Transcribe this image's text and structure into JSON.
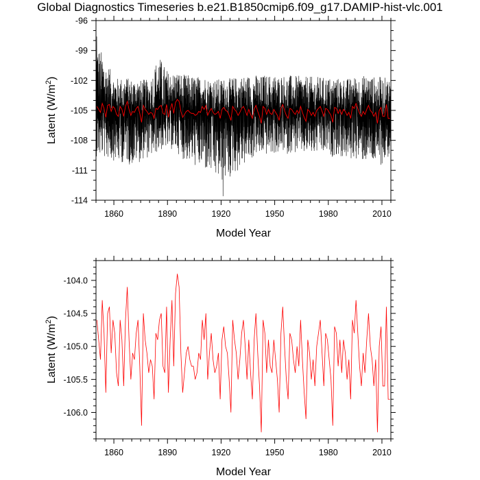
{
  "title": "Global Diagnostics Timeseries b.e21.B1850cmip6.f09_g17.DAMIP-hist-vlc.001",
  "colors": {
    "monthly": "#000000",
    "annual": "#ff0000"
  },
  "chart_data": [
    {
      "type": "line",
      "xlabel": "Model Year",
      "ylabel_prefix": "Latent (W/m",
      "ylabel_sup": "2",
      "ylabel_suffix": ")",
      "xlim": [
        1850,
        2015
      ],
      "ylim": [
        -114,
        -96
      ],
      "xticks": [
        1860,
        1890,
        1920,
        1950,
        1980,
        2010
      ],
      "yticks": [
        -96,
        -99,
        -102,
        -105,
        -108,
        -111,
        -114
      ],
      "series": [
        {
          "kind": "monthly",
          "color": "#000000",
          "x_start": 1850,
          "x_step": 0.083333,
          "mean": -105.0,
          "envelope_upper": [
            [
              1850,
              -97.6
            ],
            [
              1860,
              -101.5
            ],
            [
              1870,
              -101.6
            ],
            [
              1880,
              -101.8
            ],
            [
              1885,
              -99.2
            ],
            [
              1890,
              -100.8
            ],
            [
              1900,
              -101.2
            ],
            [
              1920,
              -101.7
            ],
            [
              1935,
              -101.3
            ],
            [
              1950,
              -101.2
            ],
            [
              1970,
              -101.4
            ],
            [
              1990,
              -101.6
            ],
            [
              2000,
              -101.3
            ],
            [
              2013,
              -101.5
            ]
          ],
          "envelope_lower": [
            [
              1850,
              -110.5
            ],
            [
              1870,
              -111.5
            ],
            [
              1890,
              -109.5
            ],
            [
              1921,
              -113.6
            ],
            [
              1940,
              -110.3
            ],
            [
              1960,
              -110.0
            ],
            [
              1980,
              -110.2
            ],
            [
              2010,
              -111.5
            ],
            [
              2013,
              -110.5
            ]
          ]
        },
        {
          "kind": "annual",
          "color": "#ff0000",
          "x_start": 1850,
          "x_step": 1,
          "values": [
            -104.6,
            -104.9,
            -105.2,
            -104.3,
            -104.8,
            -105.7,
            -104.5,
            -104.4,
            -105.1,
            -104.6,
            -104.8,
            -105.4,
            -105.6,
            -104.6,
            -104.9,
            -105.6,
            -104.6,
            -104.1,
            -104.9,
            -105.5,
            -105.1,
            -105.2,
            -104.8,
            -104.6,
            -105.3,
            -106.2,
            -104.5,
            -104.9,
            -105.1,
            -105.4,
            -105.2,
            -105.3,
            -105.8,
            -104.8,
            -104.9,
            -104.6,
            -104.5,
            -105.3,
            -105.4,
            -104.4,
            -105.7,
            -104.9,
            -104.3,
            -105.3,
            -104.2,
            -103.9,
            -104.1,
            -105.1,
            -105.7,
            -105.4,
            -105.1,
            -105.0,
            -105.2,
            -105.3,
            -105.3,
            -105.5,
            -105.4,
            -105.1,
            -105.2,
            -104.6,
            -104.9,
            -104.5,
            -105.5,
            -105.1,
            -104.8,
            -105.2,
            -105.4,
            -105.3,
            -105.1,
            -105.8,
            -104.9,
            -104.7,
            -105.0,
            -105.1,
            -105.5,
            -106.0,
            -104.6,
            -104.9,
            -105.1,
            -105.5,
            -105.2,
            -104.8,
            -104.6,
            -105.0,
            -105.5,
            -104.9,
            -105.4,
            -105.8,
            -104.9,
            -104.5,
            -105.1,
            -105.6,
            -106.3,
            -104.6,
            -104.8,
            -105.4,
            -104.9,
            -105.3,
            -105.4,
            -104.9,
            -105.2,
            -105.5,
            -106.0,
            -104.8,
            -104.4,
            -105.0,
            -105.5,
            -105.8,
            -104.8,
            -104.9,
            -105.2,
            -105.4,
            -105.0,
            -105.3,
            -104.6,
            -105.2,
            -105.7,
            -106.1,
            -104.9,
            -105.1,
            -105.5,
            -105.2,
            -105.6,
            -105.0,
            -104.8,
            -104.6,
            -105.1,
            -105.6,
            -104.8,
            -104.9,
            -105.2,
            -105.5,
            -106.2,
            -104.7,
            -104.8,
            -105.3,
            -104.9,
            -105.4,
            -104.9,
            -105.1,
            -105.5,
            -105.2,
            -105.8,
            -104.6,
            -104.8,
            -104.3,
            -104.8,
            -105.3,
            -105.6,
            -105.1,
            -105.4,
            -104.9,
            -104.5,
            -105.0,
            -105.2,
            -105.6,
            -105.2,
            -106.3,
            -105.0,
            -104.7,
            -105.6,
            -105.6,
            -104.4,
            -105.8,
            -105.8
          ]
        }
      ]
    },
    {
      "type": "line",
      "xlabel": "Model Year",
      "ylabel_prefix": "Latent (W/m",
      "ylabel_sup": "2",
      "ylabel_suffix": ")",
      "xlim": [
        1850,
        2015
      ],
      "ylim": [
        -106.4,
        -103.7
      ],
      "xticks": [
        1860,
        1890,
        1920,
        1950,
        1980,
        2010
      ],
      "yticks": [
        -104.0,
        -104.5,
        -105.0,
        -105.5,
        -106.0
      ],
      "ytick_labels": [
        "-104.0",
        "-104.5",
        "-105.0",
        "-105.5",
        "-106.0"
      ],
      "series_ref": "annual"
    }
  ]
}
